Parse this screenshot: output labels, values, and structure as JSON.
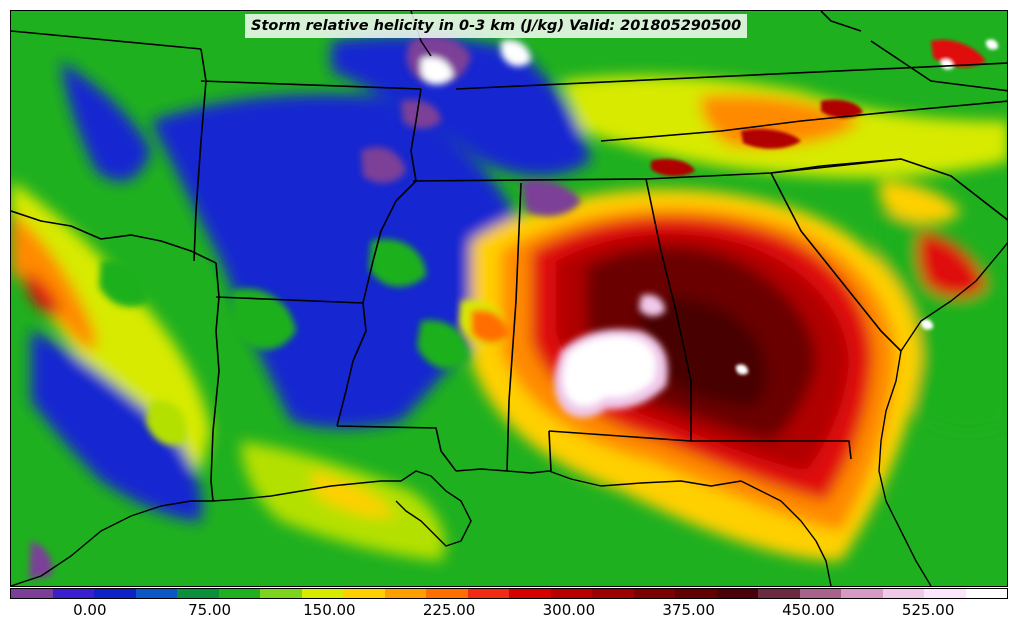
{
  "title": "Storm relative helicity in 0-3 km (J/kg) Valid: 201805290500",
  "colorbar": {
    "colors": [
      "#7b3f98",
      "#3a1fd0",
      "#0f22c8",
      "#0a58c8",
      "#0a8f3a",
      "#1fb01f",
      "#7cd41e",
      "#d7ea00",
      "#ffd000",
      "#ff9e00",
      "#ff6e00",
      "#f22a14",
      "#d70000",
      "#b80000",
      "#9c0000",
      "#7c0000",
      "#620000",
      "#4a0006",
      "#6b2a40",
      "#a8628c",
      "#d79ac4",
      "#f0c8ea",
      "#fde6fb",
      "#ffffff"
    ],
    "tick_labels": [
      "0.00",
      "75.00",
      "150.00",
      "225.00",
      "300.00",
      "375.00",
      "450.00",
      "525.00"
    ],
    "tick_values": [
      0,
      75,
      150,
      225,
      300,
      375,
      450,
      525
    ],
    "range": [
      -50,
      575
    ]
  },
  "map": {
    "region": "Southeastern United States",
    "field_colors": {
      "ocean_green": "#1fb01f",
      "blue": "#1426d0",
      "purple": "#7b3f98",
      "maroon": "#6a0000",
      "dark_red": "#b00000",
      "red": "#e01010",
      "orange": "#ff8a00",
      "yellow": "#ffd000",
      "lime": "#b4e000",
      "white": "#ffffff",
      "pink": "#f0c8ea"
    }
  }
}
